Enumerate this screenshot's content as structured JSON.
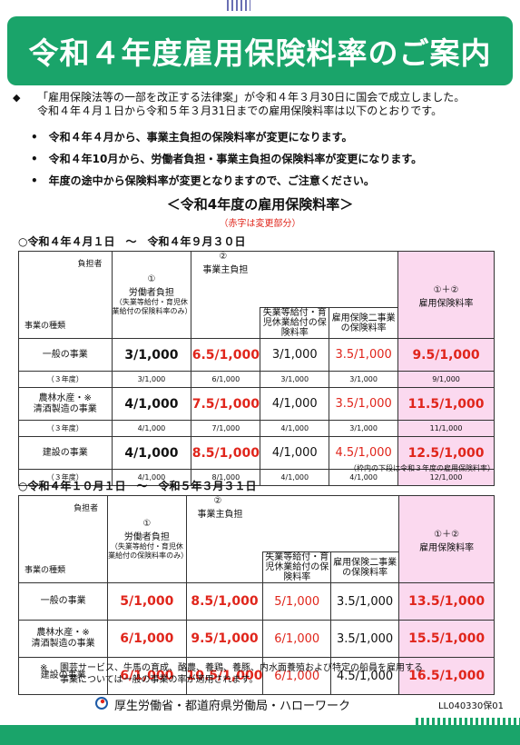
{
  "title": "令和４年度雇用保険料率のご案内",
  "intro": {
    "marker": "◆",
    "line1": "「雇用保険法等の一部を改正する法律案」が令和４年３月30日に国会で成立しました。",
    "line2": "令和４年４月１日から令和５年３月31日までの雇用保険料率は以下のとおりです。"
  },
  "bullets": [
    "令和４年４月から、事業主負担の保険料率が変更になります。",
    "令和４年10月から、労働者負担・事業主負担の保険料率が変更になります。",
    "年度の途中から保険料率が変更となりますので、ご注意ください。"
  ],
  "section_title": "＜令和4年度の雇用保険料率＞",
  "section_sub": "（赤字は変更部分）",
  "headers": {
    "payer": "負担者",
    "business_type": "事業の種類",
    "c1": "①",
    "worker": "労働者負担",
    "worker_note": "（失業等給付・育児休業給付の保険料率のみ）",
    "c2": "②",
    "employer": "事業主負担",
    "unemp": "失業等給付・育児休業給付の保険料率",
    "two_biz": "雇用保険二事業の保険料率",
    "c12": "①＋②",
    "total": "雇用保険料率"
  },
  "table1": {
    "period": "○令和４年４月１日　～　令和４年９月３０日",
    "rows": [
      {
        "cat": "一般の事業",
        "cat2": "",
        "worker": "3/1,000",
        "employer": "6.5/1,000",
        "unemp": "3/1,000",
        "two": "3.5/1,000",
        "total": "9.5/1,000",
        "sub": {
          "label": "（３年度）",
          "worker": "3/1,000",
          "employer": "6/1,000",
          "unemp": "3/1,000",
          "two": "3/1,000",
          "total": "9/1,000"
        }
      },
      {
        "cat": "農林水産・※",
        "cat2": "清酒製造の事業",
        "worker": "4/1,000",
        "employer": "7.5/1,000",
        "unemp": "4/1,000",
        "two": "3.5/1,000",
        "total": "11.5/1,000",
        "sub": {
          "label": "（３年度）",
          "worker": "4/1,000",
          "employer": "7/1,000",
          "unemp": "4/1,000",
          "two": "3/1,000",
          "total": "11/1,000"
        }
      },
      {
        "cat": "建設の事業",
        "cat2": "",
        "worker": "4/1,000",
        "employer": "8.5/1,000",
        "unemp": "4/1,000",
        "two": "4.5/1,000",
        "total": "12.5/1,000",
        "sub": {
          "label": "（３年度）",
          "worker": "4/1,000",
          "employer": "8/1,000",
          "unemp": "4/1,000",
          "two": "4/1,000",
          "total": "12/1,000"
        }
      }
    ],
    "note": "（枠内の下段は令和３年度の雇用保険料率）"
  },
  "table2": {
    "period": "○令和４年１０月１日　～　令和５年３月３１日",
    "rows": [
      {
        "cat": "一般の事業",
        "cat2": "",
        "worker": "5/1,000",
        "employer": "8.5/1,000",
        "unemp": "5/1,000",
        "two": "3.5/1,000",
        "total": "13.5/1,000"
      },
      {
        "cat": "農林水産・※",
        "cat2": "清酒製造の事業",
        "worker": "6/1,000",
        "employer": "9.5/1,000",
        "unemp": "6/1,000",
        "two": "3.5/1,000",
        "total": "15.5/1,000"
      },
      {
        "cat": "建設の事業",
        "cat2": "",
        "worker": "6/1,000",
        "employer": "10.5/1,000",
        "unemp": "6/1,000",
        "two": "4.5/1,000",
        "total": "16.5/1,000"
      }
    ]
  },
  "footnote": {
    "mark": "※",
    "line1": "園芸サービス、牛馬の育成、酪農、養鶏、養豚、内水面養殖および特定の船員を雇用する",
    "line2": "事業については一般の事業の率が適用されます。"
  },
  "footer": {
    "org": "厚生労働省・都道府県労働局・ハローワーク",
    "code": "LL040330保01"
  },
  "colors": {
    "brand_green": "#1aa46a",
    "change_red": "#e0251b",
    "total_pink": "#fbd9ef"
  }
}
